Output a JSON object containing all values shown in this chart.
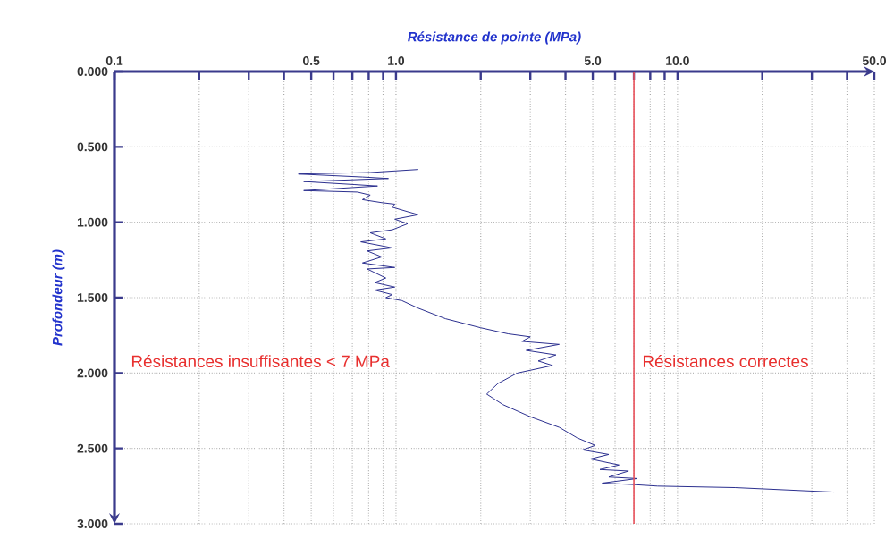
{
  "chart_data": {
    "type": "line",
    "xlabel": "Résistance de pointe (MPa)",
    "ylabel": "Profondeur (m)",
    "log": "x",
    "xlim": [
      0.1,
      50
    ],
    "ylim": [
      3.0,
      0.0
    ],
    "xticks": [
      0.1,
      {
        "value": 0.2,
        "label": null
      },
      {
        "value": 0.3,
        "label": null
      },
      {
        "value": 0.4,
        "label": null
      },
      0.5,
      {
        "value": 0.6,
        "label": null
      },
      {
        "value": 0.7,
        "label": null
      },
      {
        "value": 0.8,
        "label": null
      },
      {
        "value": 0.9,
        "label": null
      },
      {
        "value": 1,
        "label": "1.0"
      },
      {
        "value": 2,
        "label": null
      },
      {
        "value": 3,
        "label": null
      },
      {
        "value": 4,
        "label": null
      },
      {
        "value": 5,
        "label": "5.0"
      },
      {
        "value": 6,
        "label": null
      },
      {
        "value": 7,
        "label": null
      },
      {
        "value": 8,
        "label": null
      },
      {
        "value": 9,
        "label": null
      },
      {
        "value": 10,
        "label": "10.0"
      },
      {
        "value": 20,
        "label": null
      },
      {
        "value": 30,
        "label": null
      },
      {
        "value": 40,
        "label": null
      },
      {
        "value": 50,
        "label": "50.0"
      }
    ],
    "yticks": [
      {
        "value": 0,
        "label": "0.000"
      },
      {
        "value": 0.5,
        "label": "0.500"
      },
      {
        "value": 1,
        "label": "1.000"
      },
      {
        "value": 1.5,
        "label": "1.500"
      },
      {
        "value": 2,
        "label": "2.000"
      },
      {
        "value": 2.5,
        "label": "2.500"
      },
      {
        "value": 3,
        "label": "3.000"
      }
    ],
    "grid": true,
    "marker": "none",
    "line_style": "solid",
    "series": [
      {
        "color": "#2b2f8f",
        "x": [
          1.2,
          0.81,
          0.45,
          0.76,
          0.94,
          0.47,
          0.71,
          0.86,
          0.47,
          0.73,
          0.81,
          0.76,
          0.89,
          0.99,
          0.97,
          1.1,
          1.2,
          0.99,
          1.1,
          0.97,
          0.81,
          0.92,
          0.75,
          0.97,
          0.79,
          0.89,
          0.76,
          0.99,
          0.79,
          0.92,
          0.84,
          0.99,
          0.84,
          0.97,
          0.92,
          1.05,
          1.2,
          1.5,
          2.0,
          2.5,
          3.0,
          2.8,
          3.8,
          2.9,
          3.7,
          3.2,
          3.6,
          2.7,
          2.3,
          2.1,
          2.4,
          3.0,
          3.8,
          4.4,
          5.1,
          4.6,
          5.7,
          4.9,
          6.2,
          5.3,
          6.7,
          5.7,
          7.2,
          5.4,
          7.0,
          8.5,
          16,
          36
        ],
        "values": [
          0.65,
          0.67,
          0.68,
          0.7,
          0.71,
          0.73,
          0.75,
          0.76,
          0.79,
          0.8,
          0.82,
          0.85,
          0.87,
          0.88,
          0.9,
          0.93,
          0.95,
          0.98,
          1.01,
          1.05,
          1.07,
          1.11,
          1.13,
          1.17,
          1.19,
          1.23,
          1.27,
          1.3,
          1.31,
          1.37,
          1.4,
          1.43,
          1.45,
          1.48,
          1.5,
          1.52,
          1.57,
          1.64,
          1.7,
          1.74,
          1.76,
          1.79,
          1.81,
          1.85,
          1.88,
          1.92,
          1.95,
          2.0,
          2.07,
          2.14,
          2.21,
          2.29,
          2.36,
          2.43,
          2.48,
          2.51,
          2.54,
          2.57,
          2.61,
          2.64,
          2.65,
          2.69,
          2.7,
          2.73,
          2.74,
          2.75,
          2.76,
          2.79
        ]
      }
    ],
    "ref_lines": [
      {
        "axis": "x",
        "value": 7,
        "color": "#e8505a"
      }
    ],
    "annotations": [
      "Résistances insuffisantes < 7 MPa",
      "Résistances correctes"
    ]
  }
}
